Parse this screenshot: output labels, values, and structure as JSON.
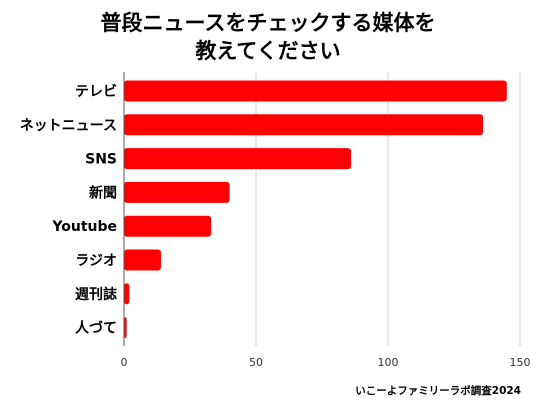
{
  "chart_data": {
    "type": "bar",
    "orientation": "horizontal",
    "title_lines": [
      "普段ニュースをチェックする媒体を",
      "教えてください"
    ],
    "categories": [
      "テレビ",
      "ネットニュース",
      "SNS",
      "新聞",
      "Youtube",
      "ラジオ",
      "週刊誌",
      "人づて"
    ],
    "values": [
      145,
      136,
      86,
      40,
      33,
      14,
      2,
      1
    ],
    "xlim": [
      0,
      150
    ],
    "xticks": [
      "0",
      "50",
      "100",
      "150"
    ],
    "xlabel": "",
    "ylabel": "",
    "grid": "vertical",
    "legend": "none",
    "bar_color": "#ff0000",
    "source": "いこーよファミリーラボ調査2024"
  }
}
